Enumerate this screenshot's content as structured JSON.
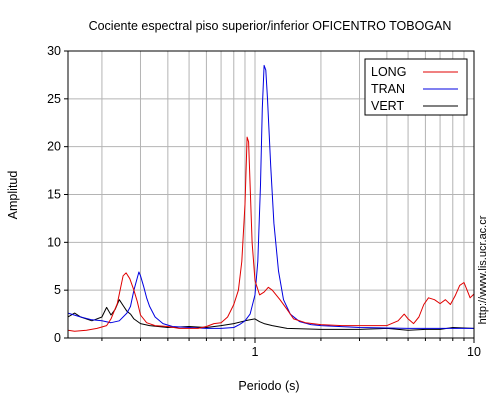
{
  "chart_data": {
    "type": "line",
    "title": "Cociente espectral piso superior/inferior OFICENTRO TOBOGAN",
    "xlabel": "Periodo (s)",
    "ylabel": "Amplitud",
    "xscale": "log",
    "xlim": [
      0.14,
      10
    ],
    "ylim": [
      0,
      30
    ],
    "grid": true,
    "legend_position": "top-right",
    "x_tick_labels": [
      {
        "value": 1,
        "label": "1"
      },
      {
        "value": 10,
        "label": "10"
      }
    ],
    "y_ticks": [
      0,
      5,
      10,
      15,
      20,
      25,
      30
    ],
    "side_text": "http://www.lis.ucr.ac.cr",
    "series": [
      {
        "name": "LONG",
        "color": "#e00000",
        "points": [
          [
            0.14,
            0.8
          ],
          [
            0.15,
            0.7
          ],
          [
            0.17,
            0.8
          ],
          [
            0.19,
            1.0
          ],
          [
            0.21,
            1.3
          ],
          [
            0.22,
            2.0
          ],
          [
            0.235,
            3.6
          ],
          [
            0.25,
            6.5
          ],
          [
            0.258,
            6.8
          ],
          [
            0.268,
            6.2
          ],
          [
            0.28,
            5.0
          ],
          [
            0.29,
            3.8
          ],
          [
            0.3,
            2.4
          ],
          [
            0.32,
            1.6
          ],
          [
            0.35,
            1.3
          ],
          [
            0.4,
            1.2
          ],
          [
            0.45,
            1.0
          ],
          [
            0.5,
            1.0
          ],
          [
            0.55,
            1.0
          ],
          [
            0.6,
            1.2
          ],
          [
            0.65,
            1.5
          ],
          [
            0.7,
            1.6
          ],
          [
            0.75,
            2.2
          ],
          [
            0.8,
            3.5
          ],
          [
            0.84,
            5.0
          ],
          [
            0.87,
            8.0
          ],
          [
            0.9,
            14.0
          ],
          [
            0.92,
            21.0
          ],
          [
            0.935,
            20.5
          ],
          [
            0.95,
            16.0
          ],
          [
            0.97,
            10.0
          ],
          [
            1.0,
            6.0
          ],
          [
            1.05,
            4.5
          ],
          [
            1.1,
            4.8
          ],
          [
            1.15,
            5.3
          ],
          [
            1.2,
            5.0
          ],
          [
            1.3,
            4.0
          ],
          [
            1.4,
            3.0
          ],
          [
            1.5,
            2.0
          ],
          [
            1.7,
            1.6
          ],
          [
            2.0,
            1.4
          ],
          [
            2.5,
            1.3
          ],
          [
            3.0,
            1.3
          ],
          [
            4.0,
            1.3
          ],
          [
            4.5,
            1.8
          ],
          [
            4.8,
            2.5
          ],
          [
            5.0,
            2.0
          ],
          [
            5.3,
            1.5
          ],
          [
            5.6,
            2.2
          ],
          [
            5.9,
            3.5
          ],
          [
            6.2,
            4.2
          ],
          [
            6.6,
            4.0
          ],
          [
            7.0,
            3.6
          ],
          [
            7.4,
            4.0
          ],
          [
            7.8,
            3.5
          ],
          [
            8.2,
            4.4
          ],
          [
            8.6,
            5.5
          ],
          [
            9.0,
            5.8
          ],
          [
            9.3,
            5.0
          ],
          [
            9.6,
            4.2
          ],
          [
            10.0,
            4.6
          ]
        ]
      },
      {
        "name": "TRAN",
        "color": "#0000e0",
        "points": [
          [
            0.14,
            2.6
          ],
          [
            0.16,
            2.2
          ],
          [
            0.18,
            1.9
          ],
          [
            0.2,
            1.8
          ],
          [
            0.22,
            1.6
          ],
          [
            0.24,
            1.8
          ],
          [
            0.26,
            2.6
          ],
          [
            0.27,
            3.3
          ],
          [
            0.28,
            5.0
          ],
          [
            0.29,
            6.3
          ],
          [
            0.295,
            6.9
          ],
          [
            0.3,
            6.5
          ],
          [
            0.31,
            5.4
          ],
          [
            0.32,
            4.2
          ],
          [
            0.33,
            3.3
          ],
          [
            0.35,
            2.2
          ],
          [
            0.38,
            1.5
          ],
          [
            0.42,
            1.2
          ],
          [
            0.5,
            1.1
          ],
          [
            0.6,
            1.0
          ],
          [
            0.7,
            1.0
          ],
          [
            0.8,
            1.1
          ],
          [
            0.85,
            1.4
          ],
          [
            0.9,
            1.8
          ],
          [
            0.95,
            2.5
          ],
          [
            1.0,
            4.5
          ],
          [
            1.03,
            8.0
          ],
          [
            1.06,
            16.0
          ],
          [
            1.08,
            24.0
          ],
          [
            1.1,
            28.5
          ],
          [
            1.12,
            28.0
          ],
          [
            1.14,
            25.0
          ],
          [
            1.18,
            18.0
          ],
          [
            1.22,
            12.0
          ],
          [
            1.28,
            7.0
          ],
          [
            1.35,
            4.0
          ],
          [
            1.45,
            2.5
          ],
          [
            1.6,
            1.7
          ],
          [
            1.8,
            1.4
          ],
          [
            2.0,
            1.3
          ],
          [
            3.0,
            1.1
          ],
          [
            5.0,
            1.0
          ],
          [
            7.0,
            1.0
          ],
          [
            10.0,
            1.0
          ]
        ]
      },
      {
        "name": "VERT",
        "color": "#000000",
        "points": [
          [
            0.14,
            2.2
          ],
          [
            0.15,
            2.6
          ],
          [
            0.16,
            2.2
          ],
          [
            0.18,
            1.8
          ],
          [
            0.2,
            2.2
          ],
          [
            0.21,
            3.2
          ],
          [
            0.22,
            2.4
          ],
          [
            0.23,
            3.0
          ],
          [
            0.24,
            4.0
          ],
          [
            0.25,
            3.4
          ],
          [
            0.26,
            2.8
          ],
          [
            0.27,
            2.5
          ],
          [
            0.28,
            2.0
          ],
          [
            0.3,
            1.5
          ],
          [
            0.33,
            1.3
          ],
          [
            0.4,
            1.1
          ],
          [
            0.5,
            1.2
          ],
          [
            0.6,
            1.1
          ],
          [
            0.7,
            1.3
          ],
          [
            0.8,
            1.5
          ],
          [
            0.9,
            1.8
          ],
          [
            0.95,
            1.9
          ],
          [
            1.0,
            2.0
          ],
          [
            1.05,
            1.7
          ],
          [
            1.1,
            1.5
          ],
          [
            1.2,
            1.3
          ],
          [
            1.4,
            1.0
          ],
          [
            2.0,
            0.9
          ],
          [
            3.0,
            0.9
          ],
          [
            4.0,
            1.0
          ],
          [
            5.0,
            0.8
          ],
          [
            6.0,
            0.9
          ],
          [
            7.0,
            0.9
          ],
          [
            8.0,
            1.1
          ],
          [
            10.0,
            1.0
          ]
        ]
      }
    ]
  }
}
